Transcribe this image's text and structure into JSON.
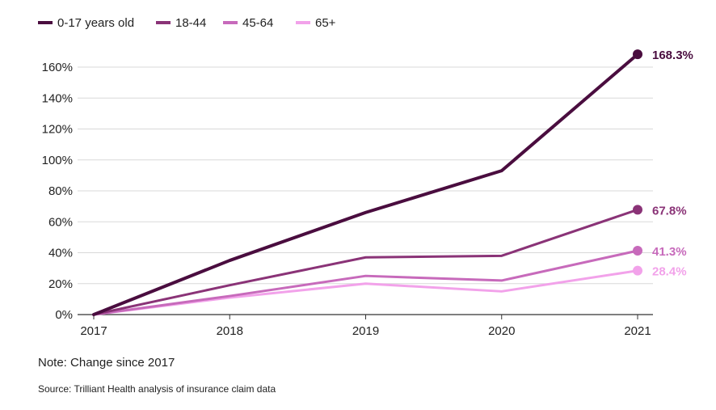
{
  "chart_data": {
    "type": "line",
    "x": [
      "2017",
      "2018",
      "2019",
      "2020",
      "2021"
    ],
    "series": [
      {
        "name": "0-17 years old",
        "values": [
          0,
          35,
          66,
          93,
          168.3
        ],
        "color": "#4a0d3f",
        "end_label": "168.3%"
      },
      {
        "name": "18-44",
        "values": [
          0,
          19,
          37,
          38,
          67.8
        ],
        "color": "#8a3377",
        "end_label": "67.8%"
      },
      {
        "name": "45-64",
        "values": [
          0,
          12,
          25,
          22,
          41.3
        ],
        "color": "#c76abb",
        "end_label": "41.3%"
      },
      {
        "name": "65+",
        "values": [
          0,
          11,
          20,
          15,
          28.4
        ],
        "color": "#f2a2ea",
        "end_label": "28.4%"
      }
    ],
    "yticks": [
      "0%",
      "20%",
      "40%",
      "60%",
      "80%",
      "100%",
      "120%",
      "140%",
      "160%"
    ],
    "ylim": [
      0,
      170
    ],
    "grid": true,
    "legend_position": "top-left"
  },
  "note": "Note: Change since 2017",
  "source": "Source: Trilliant Health analysis of insurance claim data"
}
